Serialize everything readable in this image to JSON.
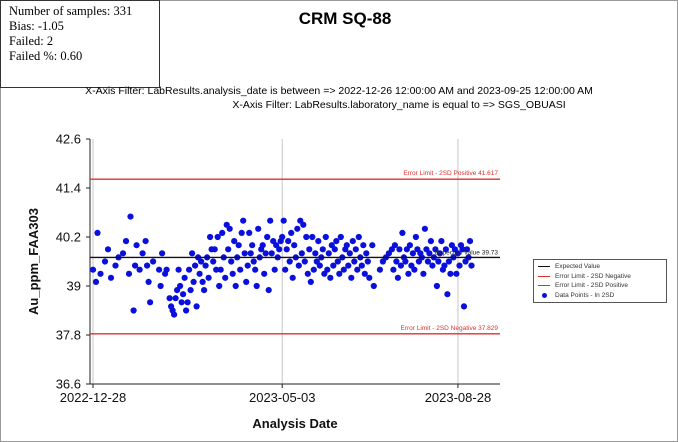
{
  "stats": {
    "samples": "Number of samples: 331",
    "bias": "Bias: -1.05",
    "failed": "Failed: 2",
    "failed_pct": "Failed %: 0.60"
  },
  "filters": {
    "line1": "X-Axis Filter: LabResults.analysis_date is between => 2022-12-26 12:00:00 AM and 2023-09-25 12:00:00 AM",
    "line2": "X-Axis Filter: LabResults.laboratory_name is equal to => SGS_OBUASI"
  },
  "colors": {
    "points": "#0a0fdc",
    "limit": "#e03030",
    "expected": "#111111"
  },
  "chart_data": {
    "type": "scatter",
    "title": "CRM SQ-88",
    "xlabel": "Analysis Date",
    "ylabel": "Au_ppm_FAA303",
    "ylim": [
      36.6,
      42.6
    ],
    "yticks": [
      "42.6",
      "41.4",
      "40.2",
      "39",
      "37.8",
      "36.6"
    ],
    "ytick_values": [
      42.6,
      41.4,
      40.2,
      39,
      37.8,
      36.6
    ],
    "x_start": "2022-12-26",
    "x_end": "2023-09-25",
    "xticks": [
      "2022-12-28",
      "2023-05-03",
      "2023-08-28"
    ],
    "xtick_days": [
      2,
      128,
      245
    ],
    "grid": "vertical",
    "expected_value": 39.7,
    "upper_limit": 41.617,
    "lower_limit": 37.829,
    "labels": {
      "upper": "Error Limit - 2SD Positive 41.617",
      "lower": "Error Limit - 2SD Negative 37.829",
      "expected": "Expected Value 39.73"
    },
    "legend": {
      "position": "right",
      "items": [
        "Expected Value",
        "Error Limit - 2SD Negative",
        "Error Limit - 2SD Positive",
        "Data Points - In 2SD"
      ]
    },
    "series": [
      {
        "name": "Data Points - In 2SD",
        "points": [
          [
            2,
            39.4
          ],
          [
            4,
            39.1
          ],
          [
            5,
            40.3
          ],
          [
            7,
            39.3
          ],
          [
            10,
            39.6
          ],
          [
            12,
            39.9
          ],
          [
            14,
            39.2
          ],
          [
            17,
            39.5
          ],
          [
            19,
            39.7
          ],
          [
            22,
            39.8
          ],
          [
            24,
            40.1
          ],
          [
            26,
            39.3
          ],
          [
            27,
            40.7
          ],
          [
            29,
            38.4
          ],
          [
            30,
            39.5
          ],
          [
            31,
            40.0
          ],
          [
            33,
            39.4
          ],
          [
            35,
            39.8
          ],
          [
            37,
            40.1
          ],
          [
            38,
            39.5
          ],
          [
            39,
            39.1
          ],
          [
            40,
            38.6
          ],
          [
            42,
            39.6
          ],
          [
            46,
            39.4
          ],
          [
            47,
            39.0
          ],
          [
            48,
            39.8
          ],
          [
            50,
            39.3
          ],
          [
            51,
            39.4
          ],
          [
            53,
            38.7
          ],
          [
            54,
            38.5
          ],
          [
            55,
            38.4
          ],
          [
            56,
            38.3
          ],
          [
            57,
            38.7
          ],
          [
            58,
            38.9
          ],
          [
            59,
            39.4
          ],
          [
            60,
            39.0
          ],
          [
            61,
            38.6
          ],
          [
            62,
            38.8
          ],
          [
            63,
            39.2
          ],
          [
            64,
            38.4
          ],
          [
            65,
            38.6
          ],
          [
            66,
            39.4
          ],
          [
            67,
            38.9
          ],
          [
            68,
            39.8
          ],
          [
            69,
            39.1
          ],
          [
            70,
            39.5
          ],
          [
            71,
            38.5
          ],
          [
            72,
            39.7
          ],
          [
            73,
            39.3
          ],
          [
            74,
            39.6
          ],
          [
            75,
            39.1
          ],
          [
            76,
            38.9
          ],
          [
            77,
            39.5
          ],
          [
            78,
            39.7
          ],
          [
            79,
            39.2
          ],
          [
            80,
            40.2
          ],
          [
            81,
            39.9
          ],
          [
            82,
            39.6
          ],
          [
            83,
            39.9
          ],
          [
            84,
            39.4
          ],
          [
            85,
            40.2
          ],
          [
            86,
            39.0
          ],
          [
            87,
            39.4
          ],
          [
            88,
            40.3
          ],
          [
            89,
            39.7
          ],
          [
            90,
            39.2
          ],
          [
            91,
            40.5
          ],
          [
            92,
            39.9
          ],
          [
            93,
            40.4
          ],
          [
            94,
            39.6
          ],
          [
            95,
            39.3
          ],
          [
            96,
            40.1
          ],
          [
            97,
            39.0
          ],
          [
            98,
            39.7
          ],
          [
            99,
            40.0
          ],
          [
            100,
            39.4
          ],
          [
            101,
            40.3
          ],
          [
            102,
            40.6
          ],
          [
            103,
            39.8
          ],
          [
            104,
            39.1
          ],
          [
            105,
            39.5
          ],
          [
            106,
            40.3
          ],
          [
            107,
            39.8
          ],
          [
            108,
            40.0
          ],
          [
            109,
            39.6
          ],
          [
            110,
            39.4
          ],
          [
            111,
            39.0
          ],
          [
            112,
            40.4
          ],
          [
            113,
            39.7
          ],
          [
            114,
            39.9
          ],
          [
            115,
            40.0
          ],
          [
            116,
            39.3
          ],
          [
            117,
            39.8
          ],
          [
            118,
            40.2
          ],
          [
            119,
            38.9
          ],
          [
            120,
            40.6
          ],
          [
            121,
            39.8
          ],
          [
            122,
            40.1
          ],
          [
            123,
            39.4
          ],
          [
            124,
            40.0
          ],
          [
            125,
            39.7
          ],
          [
            126,
            39.9
          ],
          [
            127,
            40.1
          ],
          [
            128,
            40.2
          ],
          [
            129,
            40.6
          ],
          [
            130,
            39.4
          ],
          [
            131,
            39.9
          ],
          [
            132,
            40.1
          ],
          [
            133,
            39.6
          ],
          [
            134,
            40.3
          ],
          [
            135,
            39.2
          ],
          [
            136,
            40.0
          ],
          [
            137,
            39.7
          ],
          [
            138,
            40.4
          ],
          [
            139,
            39.5
          ],
          [
            140,
            40.6
          ],
          [
            141,
            39.8
          ],
          [
            142,
            40.5
          ],
          [
            143,
            39.6
          ],
          [
            144,
            40.2
          ],
          [
            145,
            39.3
          ],
          [
            146,
            39.9
          ],
          [
            147,
            39.1
          ],
          [
            148,
            40.2
          ],
          [
            149,
            39.4
          ],
          [
            150,
            39.8
          ],
          [
            151,
            39.6
          ],
          [
            152,
            40.1
          ],
          [
            153,
            39.5
          ],
          [
            154,
            39.7
          ],
          [
            155,
            39.9
          ],
          [
            156,
            39.3
          ],
          [
            157,
            40.2
          ],
          [
            158,
            39.4
          ],
          [
            159,
            39.8
          ],
          [
            160,
            39.2
          ],
          [
            161,
            40.0
          ],
          [
            162,
            39.5
          ],
          [
            163,
            39.9
          ],
          [
            164,
            40.1
          ],
          [
            165,
            39.6
          ],
          [
            166,
            39.3
          ],
          [
            167,
            40.2
          ],
          [
            168,
            39.7
          ],
          [
            169,
            39.4
          ],
          [
            170,
            39.9
          ],
          [
            171,
            40.0
          ],
          [
            172,
            39.5
          ],
          [
            173,
            39.8
          ],
          [
            174,
            39.2
          ],
          [
            175,
            40.1
          ],
          [
            176,
            39.6
          ],
          [
            177,
            39.9
          ],
          [
            178,
            39.4
          ],
          [
            179,
            40.2
          ],
          [
            180,
            39.7
          ],
          [
            181,
            39.5
          ],
          [
            182,
            40.0
          ],
          [
            183,
            39.3
          ],
          [
            184,
            39.8
          ],
          [
            185,
            39.6
          ],
          [
            186,
            39.2
          ],
          [
            188,
            40.0
          ],
          [
            189,
            39.0
          ],
          [
            193,
            39.4
          ],
          [
            195,
            39.6
          ],
          [
            197,
            39.7
          ],
          [
            199,
            39.8
          ],
          [
            201,
            39.9
          ],
          [
            202,
            39.4
          ],
          [
            203,
            40.0
          ],
          [
            204,
            39.6
          ],
          [
            205,
            39.2
          ],
          [
            206,
            39.9
          ],
          [
            207,
            39.5
          ],
          [
            208,
            40.3
          ],
          [
            209,
            39.7
          ],
          [
            210,
            39.6
          ],
          [
            211,
            39.9
          ],
          [
            212,
            39.3
          ],
          [
            213,
            40.0
          ],
          [
            214,
            39.5
          ],
          [
            215,
            39.8
          ],
          [
            216,
            39.4
          ],
          [
            217,
            40.2
          ],
          [
            218,
            39.9
          ],
          [
            219,
            39.6
          ],
          [
            220,
            39.8
          ],
          [
            221,
            39.7
          ],
          [
            222,
            39.3
          ],
          [
            223,
            40.4
          ],
          [
            224,
            39.9
          ],
          [
            225,
            39.6
          ],
          [
            226,
            39.8
          ],
          [
            227,
            40.1
          ],
          [
            228,
            39.5
          ],
          [
            229,
            39.7
          ],
          [
            230,
            39.9
          ],
          [
            231,
            39.0
          ],
          [
            232,
            39.6
          ],
          [
            233,
            39.8
          ],
          [
            234,
            40.1
          ],
          [
            235,
            39.4
          ],
          [
            236,
            39.5
          ],
          [
            237,
            39.9
          ],
          [
            238,
            38.8
          ],
          [
            239,
            39.6
          ],
          [
            240,
            39.3
          ],
          [
            241,
            40.0
          ],
          [
            242,
            39.7
          ],
          [
            243,
            39.9
          ],
          [
            244,
            39.3
          ],
          [
            245,
            39.8
          ],
          [
            246,
            39.5
          ],
          [
            247,
            40.0
          ],
          [
            248,
            39.9
          ],
          [
            249,
            38.5
          ],
          [
            250,
            39.6
          ],
          [
            251,
            39.9
          ],
          [
            252,
            39.7
          ],
          [
            253,
            40.1
          ],
          [
            254,
            39.5
          ]
        ]
      }
    ]
  }
}
